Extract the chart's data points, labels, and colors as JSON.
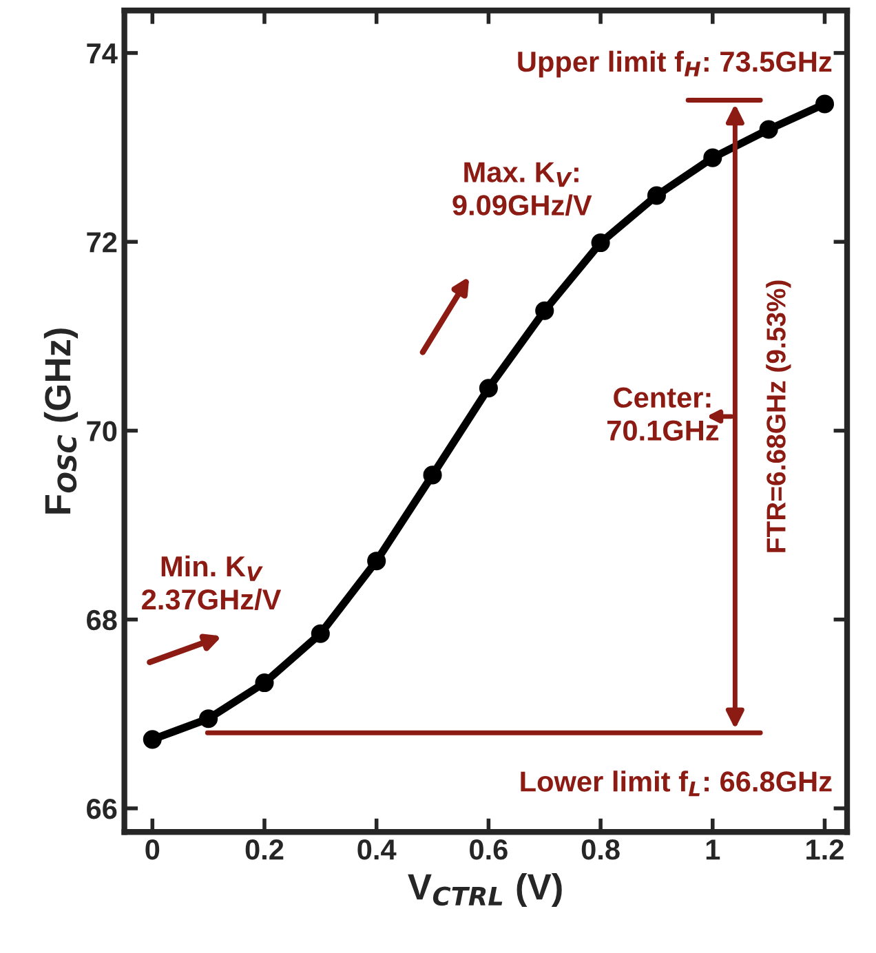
{
  "chart_data": {
    "type": "line",
    "xlabel": "V$_{CTRL}$ (V)",
    "ylabel": "F$_{OSC}$ (GHz)",
    "x": [
      0,
      0.1,
      0.2,
      0.3,
      0.4,
      0.5,
      0.6,
      0.7,
      0.8,
      0.9,
      1.0,
      1.1,
      1.2
    ],
    "series": [
      {
        "color": "#000000",
        "values": [
          66.73,
          66.95,
          67.33,
          67.85,
          68.62,
          69.53,
          70.45,
          71.27,
          71.99,
          72.49,
          72.89,
          73.19,
          73.46
        ]
      }
    ],
    "xlim": [
      -0.05,
      1.24
    ],
    "ylim": [
      65.75,
      74.45
    ],
    "xticks": [
      0,
      0.2,
      0.4,
      0.6,
      0.8,
      1,
      1.2
    ],
    "yticks": [
      66,
      68,
      70,
      72,
      74
    ],
    "ref_lines": [
      {
        "axis": "y",
        "value": 73.5,
        "label": "Upper limit f$_{H}$: 73.5GHz",
        "color": "#8c1c13"
      },
      {
        "axis": "y",
        "value": 66.8,
        "label": "Lower limit f$_{L}$: 66.8GHz",
        "color": "#8c1c13"
      }
    ],
    "annotations": [
      "Max. K$_{V}$:\n9.09GHz/V",
      "Min. K$_{V}$\n2.37GHz/V",
      "Center:\n70.1GHz",
      "FTR=6.68GHz (9.53%)"
    ],
    "marker": "circle",
    "line_style": "solid",
    "grid": false,
    "legend": false
  }
}
